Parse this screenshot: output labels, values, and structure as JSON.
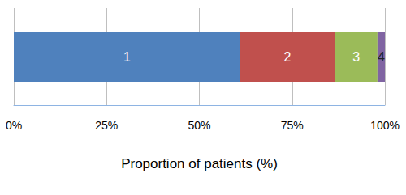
{
  "chart_data": {
    "type": "bar",
    "orientation": "horizontal",
    "stacked": true,
    "grid": true,
    "x_label": "Proportion of patients (%)",
    "categories": [
      null
    ],
    "series": [
      {
        "name": "1",
        "color": "#4f81bd",
        "values": [
          61
        ]
      },
      {
        "name": "2",
        "color": "#c0504d",
        "values": [
          25.5
        ]
      },
      {
        "name": "3",
        "color": "#9bbb59",
        "values": [
          11.5
        ]
      },
      {
        "name": "4",
        "color": "#8064a2",
        "values": [
          2
        ]
      }
    ],
    "xlim": [
      0,
      100
    ],
    "xticks": [
      {
        "value": 0,
        "label": "0%"
      },
      {
        "value": 25,
        "label": "25%"
      },
      {
        "value": 50,
        "label": "50%"
      },
      {
        "value": 75,
        "label": "75%"
      },
      {
        "value": 100,
        "label": "100%"
      }
    ]
  }
}
